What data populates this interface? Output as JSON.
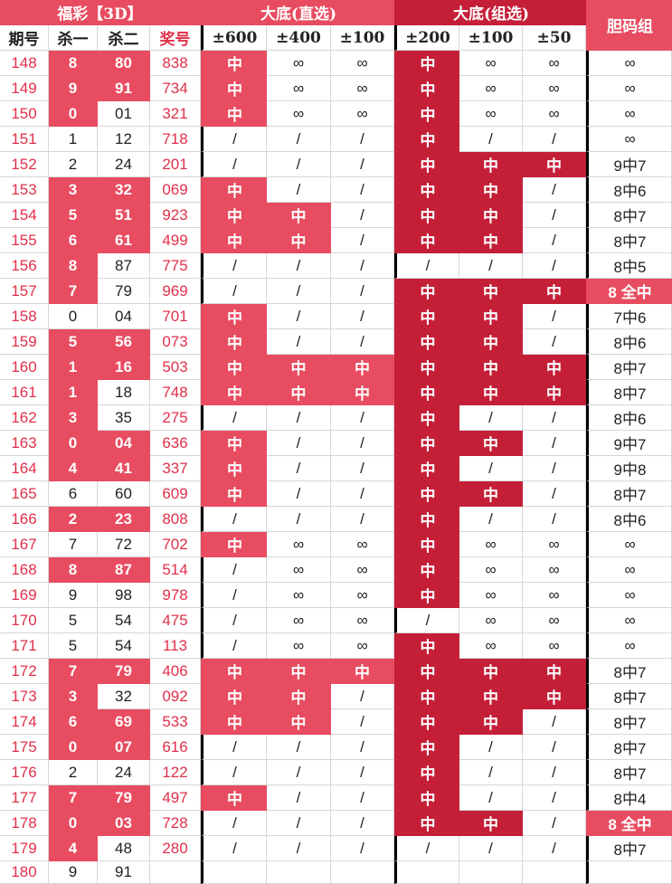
{
  "header": {
    "title": "福彩【3D】",
    "group_direct": "大底(直选)",
    "group_combo": "大底(组选)",
    "dan": "胆码组",
    "columns": [
      "期号",
      "杀一",
      "杀二",
      "奖号",
      "±600",
      "±400",
      "±100",
      "±200",
      "±100",
      "±50"
    ]
  },
  "table": {
    "rows": [
      {
        "cells": [
          "148",
          "8",
          "80",
          "838",
          "中",
          "∞",
          "∞",
          "中",
          "∞",
          "∞",
          "∞"
        ],
        "marked": [
          1,
          2,
          4,
          7
        ]
      },
      {
        "cells": [
          "149",
          "9",
          "91",
          "734",
          "中",
          "∞",
          "∞",
          "中",
          "∞",
          "∞",
          "∞"
        ],
        "marked": [
          1,
          2,
          4,
          7
        ]
      },
      {
        "cells": [
          "150",
          "0",
          "01",
          "321",
          "中",
          "∞",
          "∞",
          "中",
          "∞",
          "∞",
          "∞"
        ],
        "marked": [
          1,
          4,
          7
        ]
      },
      {
        "cells": [
          "151",
          "1",
          "12",
          "718",
          "/",
          "/",
          "/",
          "中",
          "/",
          "/",
          "∞"
        ],
        "marked": [
          7
        ]
      },
      {
        "cells": [
          "152",
          "2",
          "24",
          "201",
          "/",
          "/",
          "/",
          "中",
          "中",
          "中",
          "9中7"
        ],
        "marked": [
          7,
          8,
          9
        ]
      },
      {
        "cells": [
          "153",
          "3",
          "32",
          "069",
          "中",
          "/",
          "/",
          "中",
          "中",
          "/",
          "8中6"
        ],
        "marked": [
          1,
          2,
          4,
          7,
          8
        ]
      },
      {
        "cells": [
          "154",
          "5",
          "51",
          "923",
          "中",
          "中",
          "/",
          "中",
          "中",
          "/",
          "8中7"
        ],
        "marked": [
          1,
          2,
          4,
          5,
          7,
          8
        ]
      },
      {
        "cells": [
          "155",
          "6",
          "61",
          "499",
          "中",
          "中",
          "/",
          "中",
          "中",
          "/",
          "8中7"
        ],
        "marked": [
          1,
          2,
          4,
          5,
          7,
          8
        ]
      },
      {
        "cells": [
          "156",
          "8",
          "87",
          "775",
          "/",
          "/",
          "/",
          "/",
          "/",
          "/",
          "8中5"
        ],
        "marked": [
          1
        ]
      },
      {
        "cells": [
          "157",
          "7",
          "79",
          "969",
          "/",
          "/",
          "/",
          "中",
          "中",
          "中",
          "8 全中"
        ],
        "marked": [
          1,
          7,
          8,
          9,
          10
        ]
      },
      {
        "cells": [
          "158",
          "0",
          "04",
          "701",
          "中",
          "/",
          "/",
          "中",
          "中",
          "/",
          "7中6"
        ],
        "marked": [
          4,
          7,
          8
        ]
      },
      {
        "cells": [
          "159",
          "5",
          "56",
          "073",
          "中",
          "/",
          "/",
          "中",
          "中",
          "/",
          "8中6"
        ],
        "marked": [
          1,
          2,
          4,
          7,
          8
        ]
      },
      {
        "cells": [
          "160",
          "1",
          "16",
          "503",
          "中",
          "中",
          "中",
          "中",
          "中",
          "中",
          "8中7"
        ],
        "marked": [
          1,
          2,
          4,
          5,
          6,
          7,
          8,
          9
        ]
      },
      {
        "cells": [
          "161",
          "1",
          "18",
          "748",
          "中",
          "中",
          "中",
          "中",
          "中",
          "中",
          "8中7"
        ],
        "marked": [
          1,
          4,
          5,
          6,
          7,
          8,
          9
        ]
      },
      {
        "cells": [
          "162",
          "3",
          "35",
          "275",
          "/",
          "/",
          "/",
          "中",
          "/",
          "/",
          "8中6"
        ],
        "marked": [
          1,
          7
        ]
      },
      {
        "cells": [
          "163",
          "0",
          "04",
          "636",
          "中",
          "/",
          "/",
          "中",
          "中",
          "/",
          "9中7"
        ],
        "marked": [
          1,
          2,
          4,
          7,
          8
        ]
      },
      {
        "cells": [
          "164",
          "4",
          "41",
          "337",
          "中",
          "/",
          "/",
          "中",
          "/",
          "/",
          "9中8"
        ],
        "marked": [
          1,
          2,
          4,
          7
        ]
      },
      {
        "cells": [
          "165",
          "6",
          "60",
          "609",
          "中",
          "/",
          "/",
          "中",
          "中",
          "/",
          "8中7"
        ],
        "marked": [
          4,
          7,
          8
        ]
      },
      {
        "cells": [
          "166",
          "2",
          "23",
          "808",
          "/",
          "/",
          "/",
          "中",
          "/",
          "/",
          "8中6"
        ],
        "marked": [
          1,
          2,
          7
        ]
      },
      {
        "cells": [
          "167",
          "7",
          "72",
          "702",
          "中",
          "∞",
          "∞",
          "中",
          "∞",
          "∞",
          "∞"
        ],
        "marked": [
          4,
          7
        ]
      },
      {
        "cells": [
          "168",
          "8",
          "87",
          "514",
          "/",
          "∞",
          "∞",
          "中",
          "∞",
          "∞",
          "∞"
        ],
        "marked": [
          1,
          2,
          7
        ]
      },
      {
        "cells": [
          "169",
          "9",
          "98",
          "978",
          "/",
          "∞",
          "∞",
          "中",
          "∞",
          "∞",
          "∞"
        ],
        "marked": [
          7
        ]
      },
      {
        "cells": [
          "170",
          "5",
          "54",
          "475",
          "/",
          "∞",
          "∞",
          "/",
          "∞",
          "∞",
          "∞"
        ],
        "marked": []
      },
      {
        "cells": [
          "171",
          "5",
          "54",
          "113",
          "/",
          "∞",
          "∞",
          "中",
          "∞",
          "∞",
          "∞"
        ],
        "marked": [
          7
        ]
      },
      {
        "cells": [
          "172",
          "7",
          "79",
          "406",
          "中",
          "中",
          "中",
          "中",
          "中",
          "中",
          "8中7"
        ],
        "marked": [
          1,
          2,
          4,
          5,
          6,
          7,
          8,
          9
        ]
      },
      {
        "cells": [
          "173",
          "3",
          "32",
          "092",
          "中",
          "中",
          "/",
          "中",
          "中",
          "中",
          "8中7"
        ],
        "marked": [
          1,
          4,
          5,
          7,
          8,
          9
        ]
      },
      {
        "cells": [
          "174",
          "6",
          "69",
          "533",
          "中",
          "中",
          "/",
          "中",
          "中",
          "/",
          "8中7"
        ],
        "marked": [
          1,
          2,
          4,
          5,
          7,
          8
        ]
      },
      {
        "cells": [
          "175",
          "0",
          "07",
          "616",
          "/",
          "/",
          "/",
          "中",
          "/",
          "/",
          "8中7"
        ],
        "marked": [
          1,
          2,
          7
        ]
      },
      {
        "cells": [
          "176",
          "2",
          "24",
          "122",
          "/",
          "/",
          "/",
          "中",
          "/",
          "/",
          "8中7"
        ],
        "marked": [
          7
        ]
      },
      {
        "cells": [
          "177",
          "7",
          "79",
          "497",
          "中",
          "/",
          "/",
          "中",
          "/",
          "/",
          "8中4"
        ],
        "marked": [
          1,
          2,
          4,
          7
        ]
      },
      {
        "cells": [
          "178",
          "0",
          "03",
          "728",
          "/",
          "/",
          "/",
          "中",
          "中",
          "/",
          "8 全中"
        ],
        "marked": [
          1,
          2,
          7,
          8,
          10
        ]
      },
      {
        "cells": [
          "179",
          "4",
          "48",
          "280",
          "/",
          "/",
          "/",
          "/",
          "/",
          "/",
          "8中7"
        ],
        "marked": [
          1
        ]
      },
      {
        "cells": [
          "180",
          "9",
          "91"
        ],
        "marked": []
      }
    ]
  }
}
